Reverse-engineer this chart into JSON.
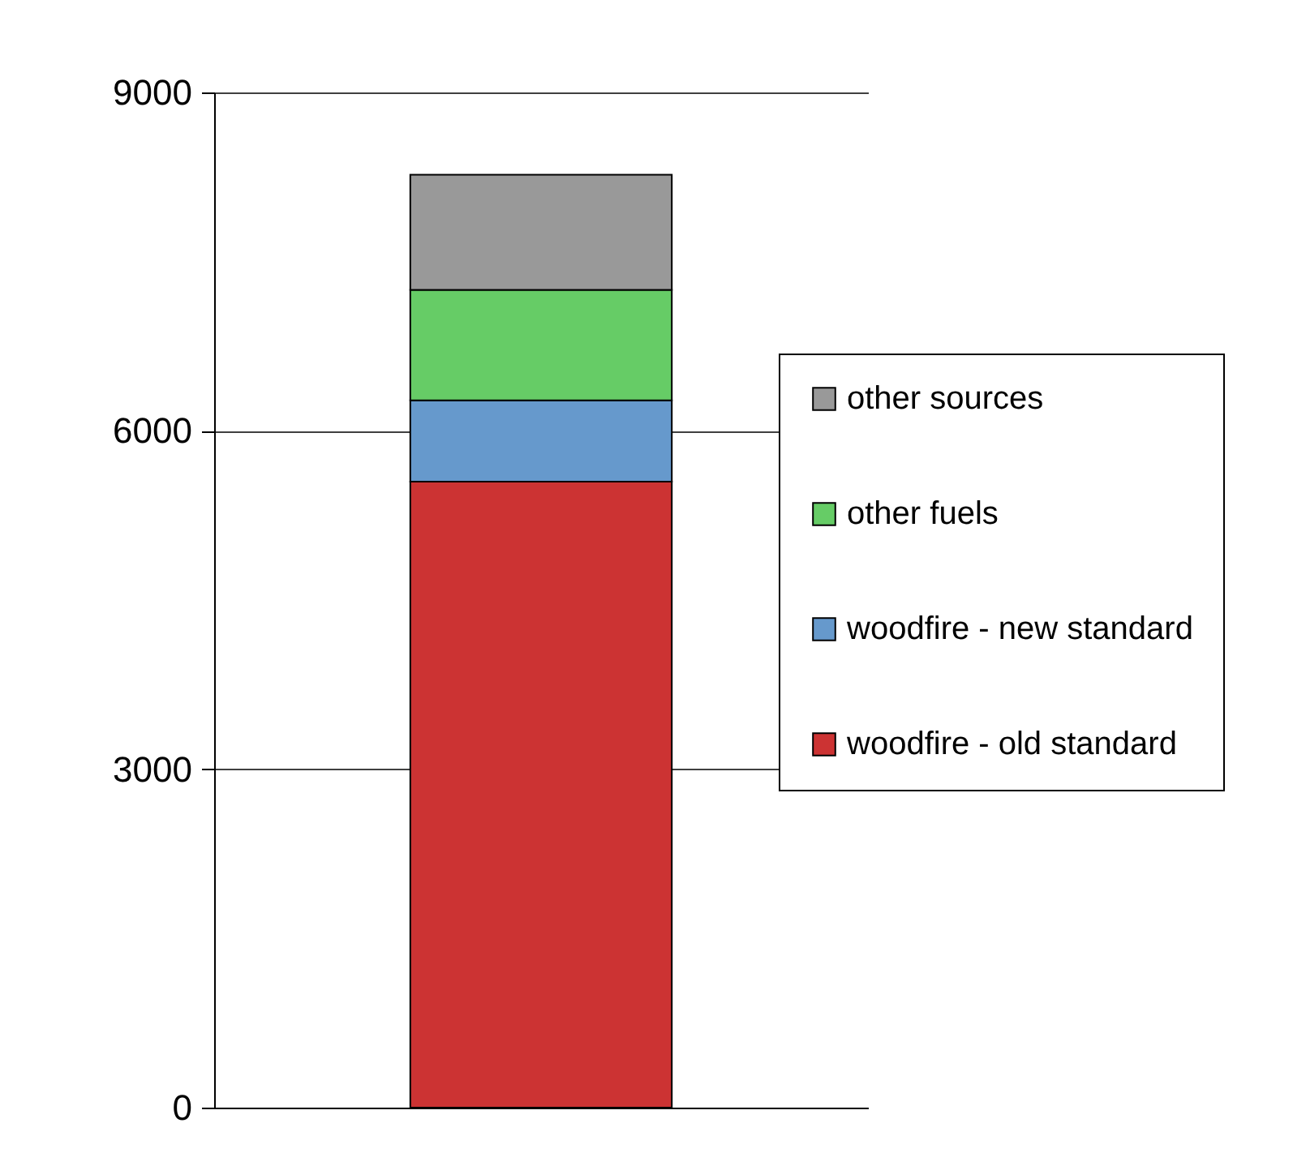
{
  "chart_data": {
    "type": "bar",
    "stacked": true,
    "categories": [
      null
    ],
    "series": [
      {
        "name": "woodfire - old standard",
        "color": "#cc3333",
        "values": [
          5550
        ]
      },
      {
        "name": "woodfire - new standard",
        "color": "#6699cc",
        "values": [
          720
        ]
      },
      {
        "name": "other fuels",
        "color": "#66cc66",
        "values": [
          980
        ]
      },
      {
        "name": "other sources",
        "color": "#999999",
        "values": [
          1020
        ]
      }
    ],
    "ylim": [
      0,
      9000
    ],
    "yticks": [
      0,
      3000,
      6000,
      9000
    ],
    "grid": "y",
    "legend": "right",
    "tick_labels": "y"
  }
}
